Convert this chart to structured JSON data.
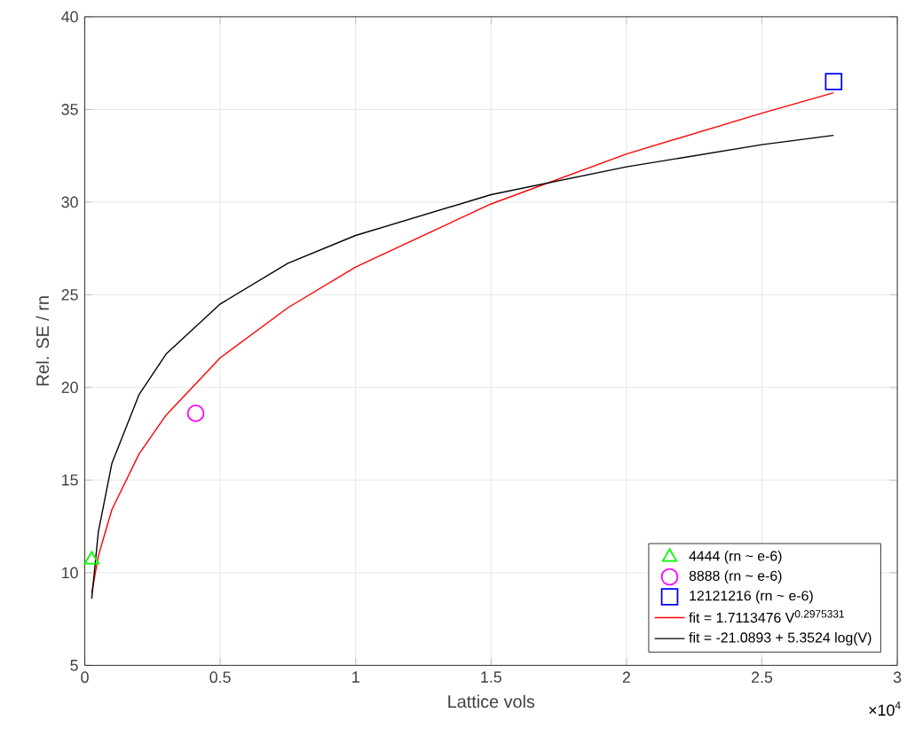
{
  "chart_data": {
    "type": "scatter",
    "xlabel": "Lattice vols",
    "ylabel": "Rel. SE / rn",
    "xlim": [
      0,
      3
    ],
    "ylim": [
      5,
      40
    ],
    "xticks": [
      0,
      0.5,
      1,
      1.5,
      2,
      2.5,
      3
    ],
    "yticks": [
      5,
      10,
      15,
      20,
      25,
      30,
      35,
      40
    ],
    "grid": true,
    "legend": "bottom right",
    "annotations": [
      "×10$^{4}$"
    ],
    "series": [
      {
        "name": "4444 (rn ~ e-6)",
        "marker": "triangle",
        "color": "#00ff00",
        "x": [
          0.0256
        ],
        "values": [
          10.7
        ]
      },
      {
        "name": "8888 (rn ~ e-6)",
        "marker": "circle",
        "color": "#ff00ff",
        "x": [
          0.4096
        ],
        "values": [
          18.6
        ]
      },
      {
        "name": "12121216 (rn ~ e-6)",
        "marker": "square",
        "color": "#0000ff",
        "x": [
          2.7648
        ],
        "values": [
          36.5
        ]
      },
      {
        "name": "fit = 1.7113476 V$^{0.2975331}$",
        "type": "line",
        "color": "#ff0000",
        "x": [
          0.0256,
          0.05,
          0.1,
          0.2,
          0.3,
          0.5,
          0.75,
          1,
          1.5,
          2,
          2.5,
          2.7648
        ],
        "values": [
          8.9,
          10.9,
          13.4,
          16.4,
          18.5,
          21.6,
          24.3,
          26.5,
          29.9,
          32.6,
          34.8,
          35.9
        ]
      },
      {
        "name": "fit = -21.0893 + 5.3524 log(V)",
        "type": "line",
        "color": "#000000",
        "x": [
          0.0256,
          0.05,
          0.1,
          0.2,
          0.3,
          0.5,
          0.75,
          1,
          1.5,
          2,
          2.5,
          2.7648
        ],
        "values": [
          8.6,
          12.2,
          15.9,
          19.6,
          21.8,
          24.5,
          26.7,
          28.2,
          30.4,
          31.9,
          33.1,
          33.6
        ]
      }
    ]
  }
}
